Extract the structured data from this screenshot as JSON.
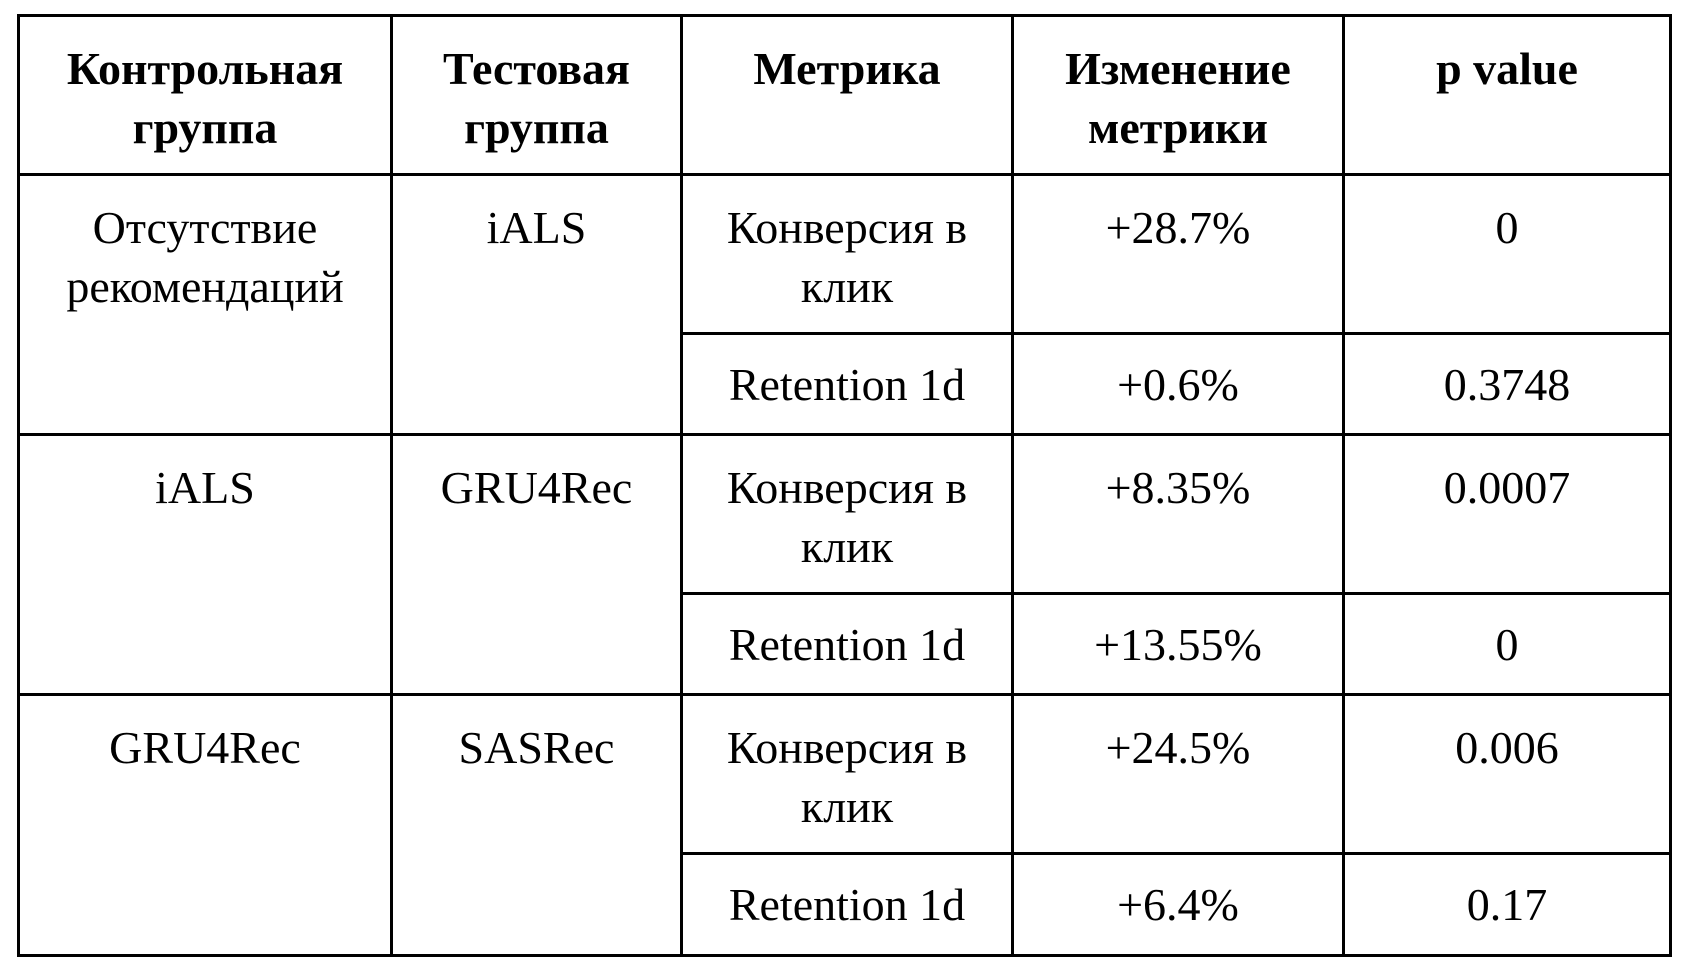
{
  "table": {
    "headers": [
      "Контрольная группа",
      "Тестовая группа",
      "Метрика",
      "Изменение метрики",
      "p value"
    ],
    "groups": [
      {
        "control": "Отсутствие рекомендаций",
        "test": "iALS",
        "rows": [
          {
            "metric": "Конверсия в клик",
            "change": "+28.7%",
            "p_value": "0",
            "significant": true
          },
          {
            "metric": "Retention 1d",
            "change": "+0.6%",
            "p_value": "0.3748",
            "significant": false
          }
        ]
      },
      {
        "control": "iALS",
        "test": "GRU4Rec",
        "rows": [
          {
            "metric": "Конверсия в клик",
            "change": "+8.35%",
            "p_value": "0.0007",
            "significant": true
          },
          {
            "metric": "Retention 1d",
            "change": "+13.55%",
            "p_value": "0",
            "significant": true
          }
        ]
      },
      {
        "control": "GRU4Rec",
        "test": "SASRec",
        "rows": [
          {
            "metric": "Конверсия в клик",
            "change": "+24.5%",
            "p_value": "0.006",
            "significant": true
          },
          {
            "metric": "Retention 1d",
            "change": "+6.4%",
            "p_value": "0.17",
            "significant": false
          }
        ]
      }
    ]
  }
}
